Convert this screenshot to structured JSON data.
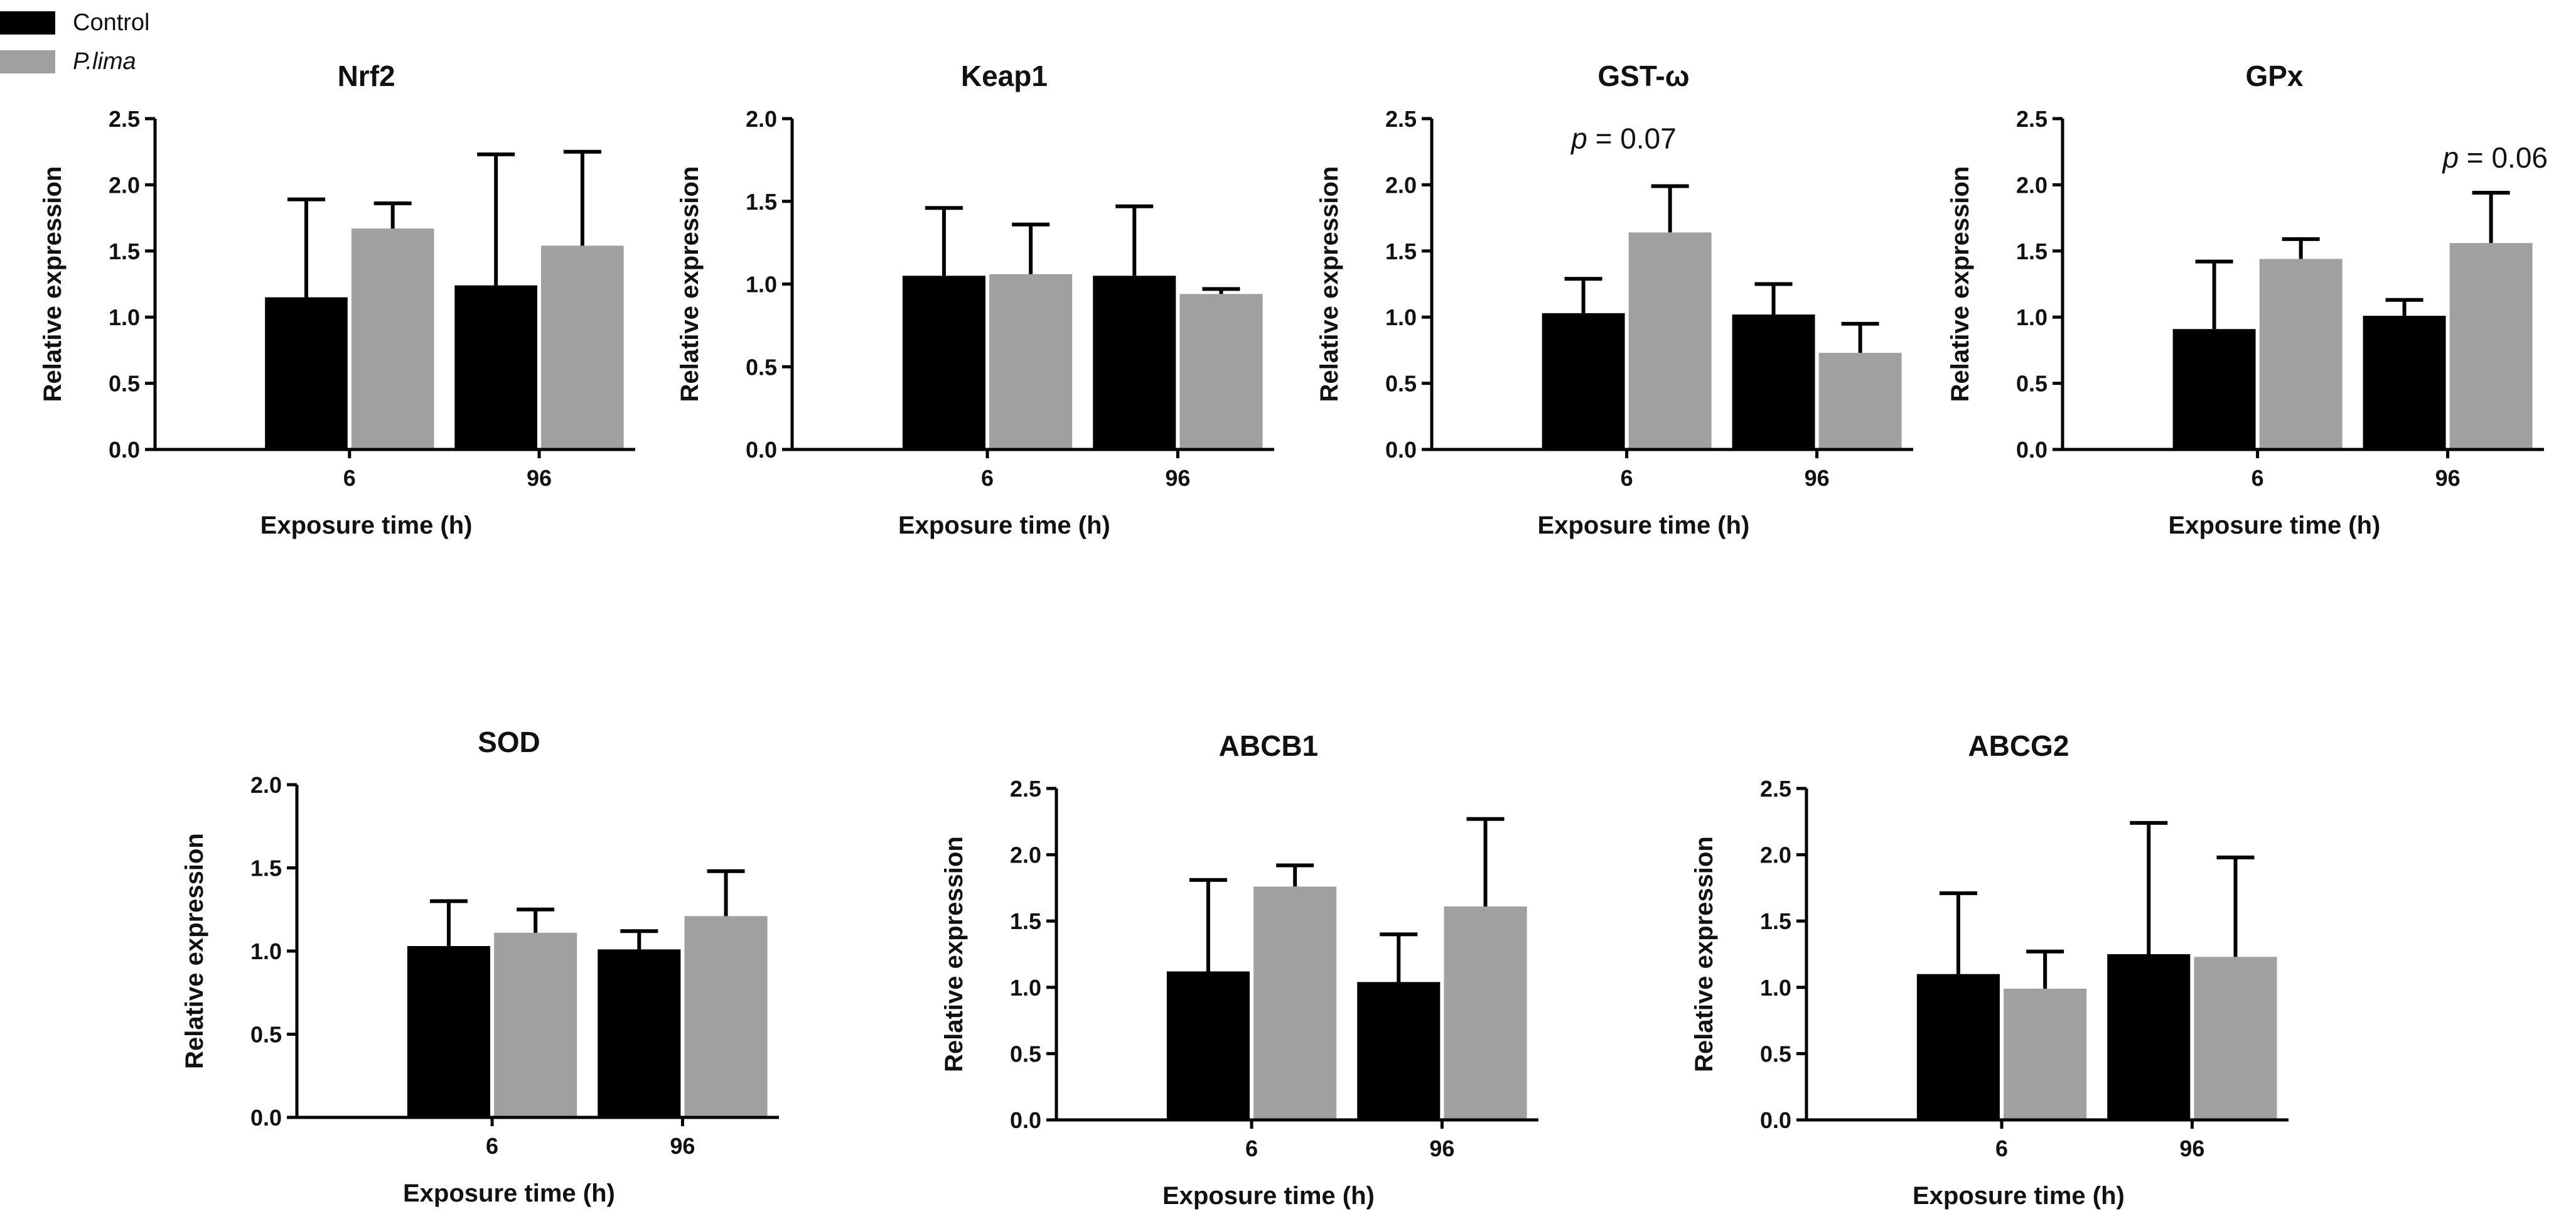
{
  "colors": {
    "control": "#000000",
    "treatment": "#a0a0a2",
    "axis": "#000000",
    "text": "#111111"
  },
  "legend": {
    "control_label": "Control",
    "treatment_label": "P.lima"
  },
  "chart_data": [
    {
      "type": "bar",
      "title": "Nrf2",
      "xlabel": "Exposure time (h)",
      "ylabel": "Relative expression",
      "categories": [
        "6",
        "96"
      ],
      "ylim": [
        0,
        2.5
      ],
      "yticks": [
        "0.0",
        "0.5",
        "1.0",
        "1.5",
        "2.0",
        "2.5"
      ],
      "series": [
        {
          "name": "Control",
          "values": [
            1.15,
            1.24
          ],
          "errors": [
            0.74,
            0.99
          ]
        },
        {
          "name": "P.lima",
          "values": [
            1.67,
            1.54
          ],
          "errors": [
            0.19,
            0.71
          ]
        }
      ],
      "annotation": null
    },
    {
      "type": "bar",
      "title": "Keap1",
      "xlabel": "Exposure time (h)",
      "ylabel": "Relative expression",
      "categories": [
        "6",
        "96"
      ],
      "ylim": [
        0,
        2.0
      ],
      "yticks": [
        "0.0",
        "0.5",
        "1.0",
        "1.5",
        "2.0"
      ],
      "series": [
        {
          "name": "Control",
          "values": [
            1.05,
            1.05
          ],
          "errors": [
            0.41,
            0.42
          ]
        },
        {
          "name": "P.lima",
          "values": [
            1.06,
            0.94
          ],
          "errors": [
            0.3,
            0.03
          ]
        }
      ],
      "annotation": null
    },
    {
      "type": "bar",
      "title": "GST-ω",
      "xlabel": "Exposure time (h)",
      "ylabel": "Relative expression",
      "categories": [
        "6",
        "96"
      ],
      "ylim": [
        0,
        2.5
      ],
      "yticks": [
        "0.0",
        "0.5",
        "1.0",
        "1.5",
        "2.0",
        "2.5"
      ],
      "series": [
        {
          "name": "Control",
          "values": [
            1.03,
            1.02
          ],
          "errors": [
            0.26,
            0.23
          ]
        },
        {
          "name": "P.lima",
          "values": [
            1.64,
            0.73
          ],
          "errors": [
            0.35,
            0.22
          ]
        }
      ],
      "annotation": {
        "p_symbol": "p",
        "p_text": " = 0.07",
        "category_index": 0,
        "series_index": 1
      }
    },
    {
      "type": "bar",
      "title": "GPx",
      "xlabel": "Exposure time (h)",
      "ylabel": "Relative expression",
      "categories": [
        "6",
        "96"
      ],
      "ylim": [
        0,
        2.5
      ],
      "yticks": [
        "0.0",
        "0.5",
        "1.0",
        "1.5",
        "2.0",
        "2.5"
      ],
      "series": [
        {
          "name": "Control",
          "values": [
            0.91,
            1.01
          ],
          "errors": [
            0.51,
            0.12
          ]
        },
        {
          "name": "P.lima",
          "values": [
            1.44,
            1.56
          ],
          "errors": [
            0.15,
            0.38
          ]
        }
      ],
      "annotation": {
        "p_symbol": "p",
        "p_text": " = 0.06",
        "category_index": 1,
        "series_index": 1
      }
    },
    {
      "type": "bar",
      "title": "SOD",
      "xlabel": "Exposure time (h)",
      "ylabel": "Relative expression",
      "categories": [
        "6",
        "96"
      ],
      "ylim": [
        0,
        2.0
      ],
      "yticks": [
        "0.0",
        "0.5",
        "1.0",
        "1.5",
        "2.0"
      ],
      "series": [
        {
          "name": "Control",
          "values": [
            1.03,
            1.01
          ],
          "errors": [
            0.27,
            0.11
          ]
        },
        {
          "name": "P.lima",
          "values": [
            1.11,
            1.21
          ],
          "errors": [
            0.14,
            0.27
          ]
        }
      ],
      "annotation": null
    },
    {
      "type": "bar",
      "title": "ABCB1",
      "xlabel": "Exposure time (h)",
      "ylabel": "Relative expression",
      "categories": [
        "6",
        "96"
      ],
      "ylim": [
        0,
        2.5
      ],
      "yticks": [
        "0.0",
        "0.5",
        "1.0",
        "1.5",
        "2.0",
        "2.5"
      ],
      "series": [
        {
          "name": "Control",
          "values": [
            1.12,
            1.04
          ],
          "errors": [
            0.69,
            0.36
          ]
        },
        {
          "name": "P.lima",
          "values": [
            1.76,
            1.61
          ],
          "errors": [
            0.16,
            0.66
          ]
        }
      ],
      "annotation": null
    },
    {
      "type": "bar",
      "title": "ABCG2",
      "xlabel": "Exposure time (h)",
      "ylabel": "Relative expression",
      "categories": [
        "6",
        "96"
      ],
      "ylim": [
        0,
        2.5
      ],
      "yticks": [
        "0.0",
        "0.5",
        "1.0",
        "1.5",
        "2.0",
        "2.5"
      ],
      "series": [
        {
          "name": "Control",
          "values": [
            1.1,
            1.25
          ],
          "errors": [
            0.61,
            0.99
          ]
        },
        {
          "name": "P.lima",
          "values": [
            0.99,
            1.23
          ],
          "errors": [
            0.28,
            0.75
          ]
        }
      ],
      "annotation": null
    }
  ]
}
